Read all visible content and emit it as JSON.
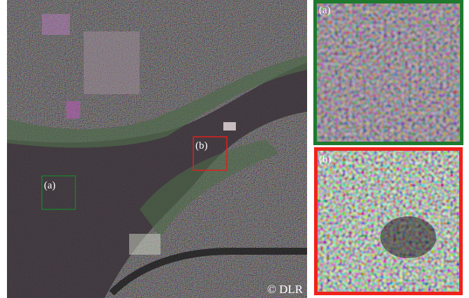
{
  "main_image": {
    "labels": [
      "(a)",
      "(b)"
    ],
    "copyright": "© DLR"
  },
  "panels": [
    {
      "label": "(a)"
    },
    {
      "label": "(b)"
    }
  ]
}
